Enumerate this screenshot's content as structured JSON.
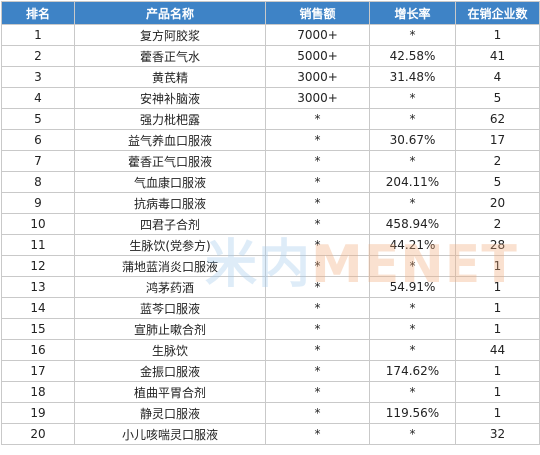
{
  "table": {
    "headers": [
      "排名",
      "产品名称",
      "销售额",
      "增长率",
      "在销企业数"
    ],
    "rows": [
      [
        "1",
        "复方阿胶浆",
        "7000+",
        "*",
        "1"
      ],
      [
        "2",
        "藿香正气水",
        "5000+",
        "42.58%",
        "41"
      ],
      [
        "3",
        "黄芪精",
        "3000+",
        "31.48%",
        "4"
      ],
      [
        "4",
        "安神补脑液",
        "3000+",
        "*",
        "5"
      ],
      [
        "5",
        "强力枇杷露",
        "*",
        "*",
        "62"
      ],
      [
        "6",
        "益气养血口服液",
        "*",
        "30.67%",
        "17"
      ],
      [
        "7",
        "藿香正气口服液",
        "*",
        "*",
        "2"
      ],
      [
        "8",
        "气血康口服液",
        "*",
        "204.11%",
        "5"
      ],
      [
        "9",
        "抗病毒口服液",
        "*",
        "*",
        "20"
      ],
      [
        "10",
        "四君子合剂",
        "*",
        "458.94%",
        "2"
      ],
      [
        "11",
        "生脉饮(党参方)",
        "*",
        "44.21%",
        "28"
      ],
      [
        "12",
        "蒲地蓝消炎口服液",
        "*",
        "*",
        "1"
      ],
      [
        "13",
        "鸿茅药酒",
        "*",
        "54.91%",
        "1"
      ],
      [
        "14",
        "蓝芩口服液",
        "*",
        "*",
        "1"
      ],
      [
        "15",
        "宣肺止嗽合剂",
        "*",
        "*",
        "1"
      ],
      [
        "16",
        "生脉饮",
        "*",
        "*",
        "44"
      ],
      [
        "17",
        "金振口服液",
        "*",
        "174.62%",
        "1"
      ],
      [
        "18",
        "植曲平胃合剂",
        "*",
        "*",
        "1"
      ],
      [
        "19",
        "静灵口服液",
        "*",
        "119.56%",
        "1"
      ],
      [
        "20",
        "小儿咳喘灵口服液",
        "*",
        "*",
        "32"
      ]
    ]
  },
  "watermark": {
    "prefix": "米内",
    "accent": "MENET"
  }
}
